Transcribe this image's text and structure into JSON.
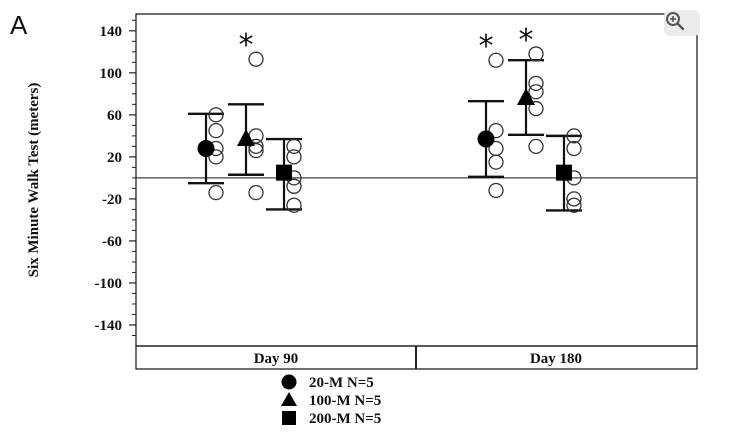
{
  "panel_label": "A",
  "chart_data": {
    "type": "scatter",
    "ylabel": "Six Minute Walk Test (meters)",
    "xlabel": "",
    "title": "",
    "ylim": [
      -160,
      156
    ],
    "yticks": [
      140,
      100,
      60,
      20,
      -20,
      -60,
      -100,
      -140
    ],
    "reference_line": 0,
    "grid": false,
    "legend_position": "bottom-center",
    "categories": [
      "Day 90",
      "Day 180"
    ],
    "series": [
      {
        "name": "20-M N=5",
        "marker": "circle",
        "mean": [
          28,
          37
        ],
        "error_low": [
          -5,
          1
        ],
        "error_high": [
          61,
          73
        ],
        "points": [
          [
            60,
            45,
            28,
            20,
            -14
          ],
          [
            112,
            45,
            28,
            15,
            -12
          ]
        ]
      },
      {
        "name": "100-M N=5",
        "marker": "triangle",
        "mean": [
          37,
          76
        ],
        "error_low": [
          3,
          41
        ],
        "error_high": [
          70,
          112
        ],
        "points": [
          [
            113,
            40,
            30,
            26,
            -14
          ],
          [
            118,
            90,
            82,
            66,
            30
          ]
        ]
      },
      {
        "name": "200-M N=5",
        "marker": "square",
        "mean": [
          5,
          5
        ],
        "error_low": [
          -30,
          -31
        ],
        "error_high": [
          37,
          40
        ],
        "points": [
          [
            30,
            20,
            0,
            -8,
            -26
          ],
          [
            40,
            28,
            0,
            -20,
            -26
          ]
        ]
      }
    ],
    "significance": [
      {
        "category": "Day 90",
        "series": "100-M N=5",
        "label": "*"
      },
      {
        "category": "Day 180",
        "series": "20-M N=5",
        "label": "*"
      },
      {
        "category": "Day 180",
        "series": "100-M N=5",
        "label": "*"
      }
    ]
  },
  "toolbar": {
    "zoom_icon": "zoom-in-icon"
  }
}
